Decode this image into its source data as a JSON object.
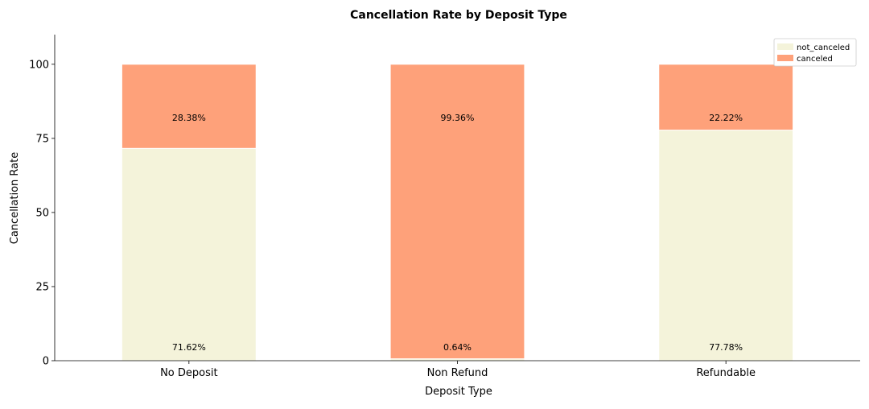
{
  "chart_data": {
    "type": "bar",
    "stacked": true,
    "title": "Cancellation Rate by Deposit Type",
    "xlabel": "Deposit Type",
    "ylabel": "Cancellation Rate",
    "categories": [
      "No Deposit",
      "Non Refund",
      "Refundable"
    ],
    "series": [
      {
        "name": "not_canceled",
        "color": "#f4f3da",
        "values": [
          71.62,
          0.64,
          77.78
        ],
        "labels": [
          "71.62%",
          "0.64%",
          "77.78%"
        ]
      },
      {
        "name": "canceled",
        "color": "#fea17a",
        "values": [
          28.38,
          99.36,
          22.22
        ],
        "labels": [
          "28.38%",
          "99.36%",
          "22.22%"
        ]
      }
    ],
    "ylim": [
      0,
      110
    ],
    "yticks": [
      0,
      25,
      50,
      75,
      100
    ],
    "grid": false,
    "legend_position": "top-right"
  }
}
